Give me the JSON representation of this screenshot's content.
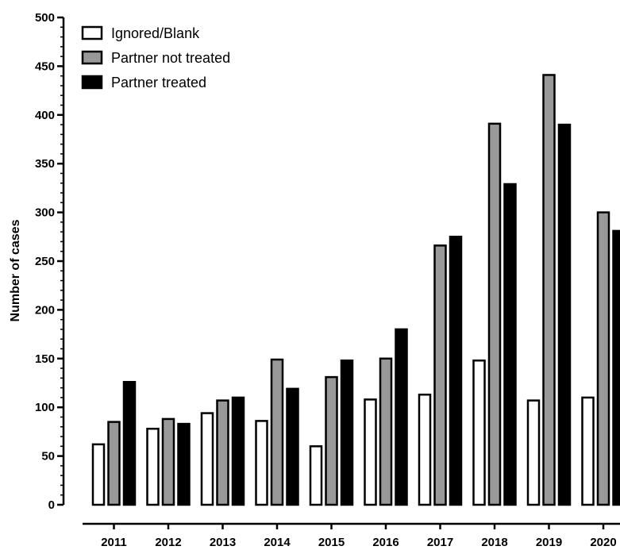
{
  "chart_data": {
    "type": "bar",
    "title": "",
    "xlabel": "",
    "ylabel": "Number of cases",
    "ylim": [
      0,
      500
    ],
    "yticks": [
      0,
      50,
      100,
      150,
      200,
      250,
      300,
      350,
      400,
      450,
      500
    ],
    "categories": [
      "2011",
      "2012",
      "2013",
      "2014",
      "2015",
      "2016",
      "2017",
      "2018",
      "2019",
      "2020"
    ],
    "legend_position": "top-left",
    "grid": false,
    "series": [
      {
        "name": "Ignored/Blank",
        "color": "#ffffff",
        "values": [
          62,
          78,
          94,
          86,
          60,
          108,
          113,
          148,
          107,
          110
        ]
      },
      {
        "name": "Partner not treated",
        "color": "#999999",
        "values": [
          85,
          88,
          107,
          149,
          131,
          150,
          266,
          391,
          441,
          300
        ]
      },
      {
        "name": "Partner treated",
        "color": "#000000",
        "values": [
          126,
          83,
          110,
          119,
          148,
          180,
          275,
          329,
          390,
          281
        ]
      }
    ]
  }
}
